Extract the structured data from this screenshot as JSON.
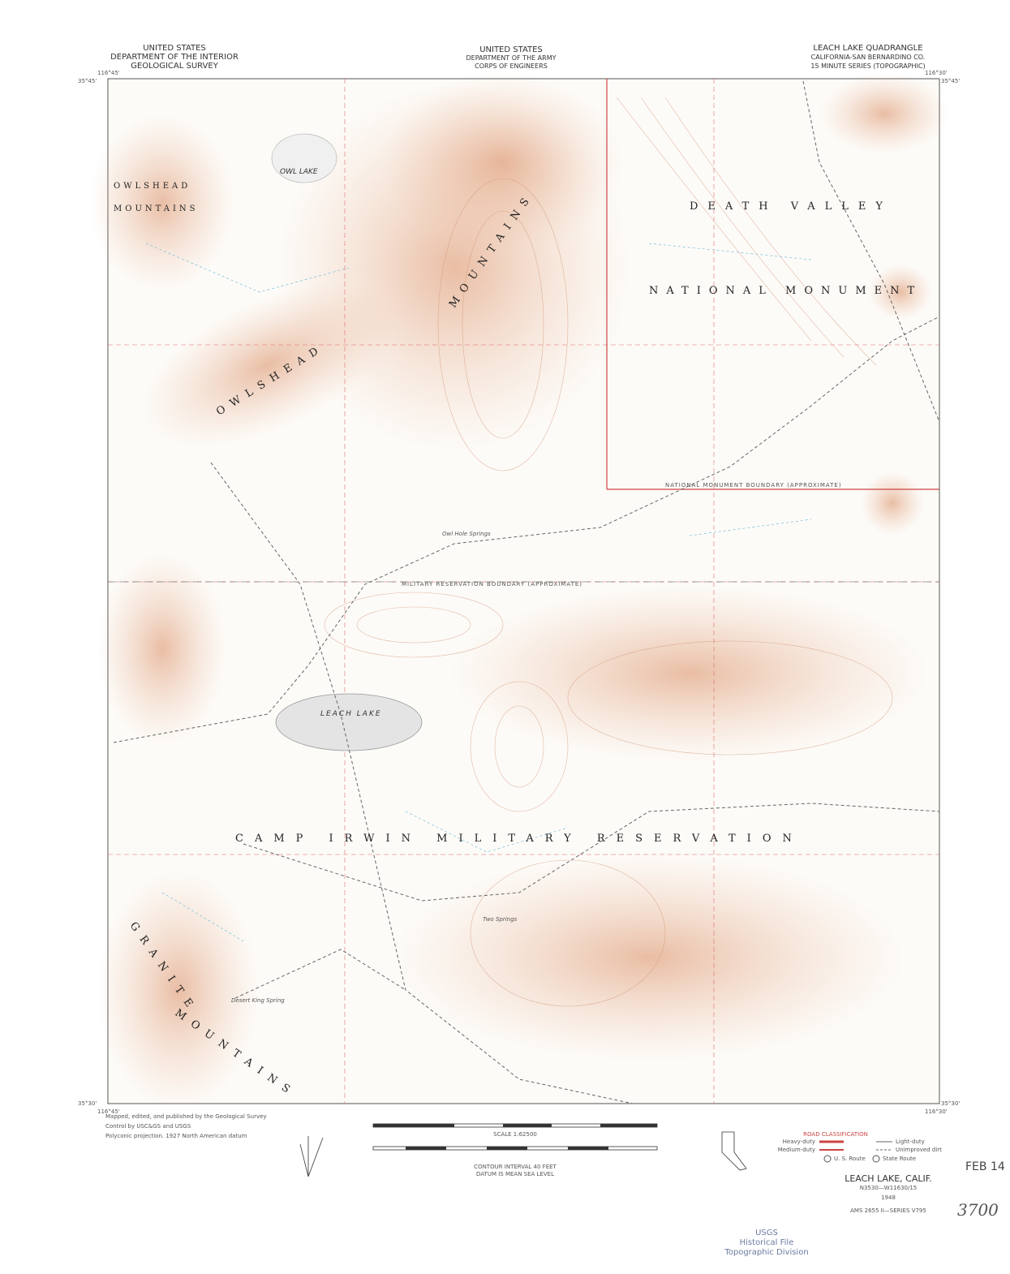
{
  "header": {
    "left": [
      "UNITED STATES",
      "DEPARTMENT OF THE INTERIOR",
      "GEOLOGICAL SURVEY"
    ],
    "center": [
      "UNITED STATES",
      "DEPARTMENT OF THE ARMY",
      "CORPS OF ENGINEERS"
    ],
    "right": [
      "LEACH LAKE QUADRANGLE",
      "CALIFORNIA-SAN BERNARDINO CO.",
      "15 MINUTE SERIES (TOPOGRAPHIC)"
    ]
  },
  "corners": {
    "nw_lon": "116°45'",
    "nw_lat": "35°45'",
    "ne_lon": "116°30'",
    "ne_lat": "35°45'",
    "sw_lon": "116°45'",
    "sw_lat": "35°30'",
    "se_lon": "116°30'",
    "se_lat": "35°30'"
  },
  "map_labels": {
    "owl_lake": "OWL LAKE",
    "owlshead_w1": "OWLSHEAD",
    "owlshead_w2": "MOUNTAINS",
    "owlshead": "OWLSHEAD",
    "mountains": "MOUNTAINS",
    "death_valley": "DEATH VALLEY",
    "national_monument": "NATIONAL MONUMENT",
    "leach_lake": "LEACH LAKE",
    "camp_irwin": "CAMP IRWIN MILITARY RESERVATION",
    "granite": "GRANITE",
    "granite_mtns": "MOUNTAINS",
    "owl_hole": "Owl Hole Springs",
    "two_springs": "Two Springs",
    "desert_king": "Desert King Spring",
    "boundary": "MILITARY RESERVATION BOUNDARY (APPROXIMATE)",
    "monument_boundary": "NATIONAL MONUMENT BOUNDARY (APPROXIMATE)"
  },
  "footer": {
    "credits": [
      "Mapped, edited, and published by the Geological Survey",
      "Control by USC&GS and USGS",
      "Polyconic projection. 1927 North American datum"
    ],
    "scale": "SCALE 1:62500",
    "contour": "CONTOUR INTERVAL 40 FEET",
    "datum": "DATUM IS MEAN SEA LEVEL",
    "road_title": "ROAD CLASSIFICATION",
    "road_legend": [
      "Heavy-duty",
      "Medium-duty",
      "Light-duty",
      "Unimproved dirt",
      "U. S. Route",
      "State Route"
    ],
    "name": "LEACH LAKE, CALIF.",
    "code": "N3530—W11630/15",
    "year": "1948",
    "series": "AMS 2655 II—SERIES V795"
  },
  "stamp": {
    "date": "FEB 14",
    "number": "3700",
    "lines": [
      "USGS",
      "Historical File",
      "Topographic Division"
    ]
  }
}
